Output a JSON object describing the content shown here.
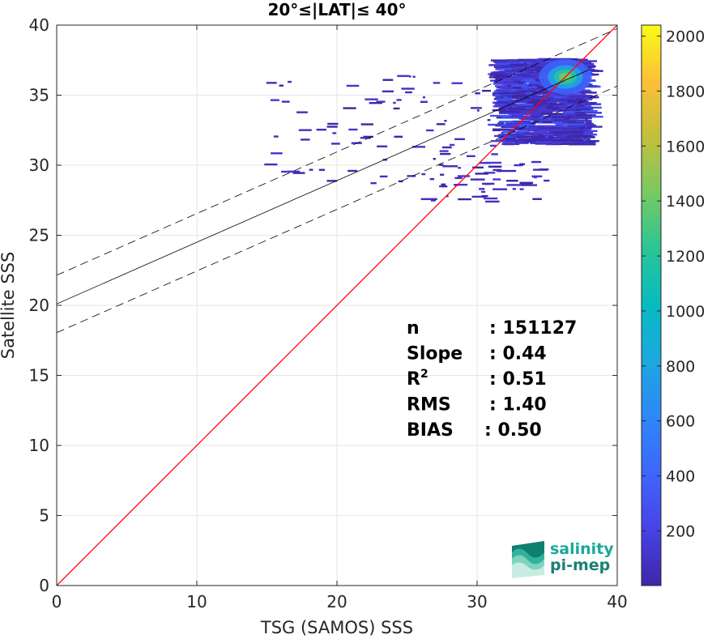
{
  "chart_data": {
    "type": "heatmap",
    "title": "20°≤|LAT|≤ 40°",
    "xlabel": "TSG (SAMOS) SSS",
    "ylabel": "Satellite SSS",
    "xlim": [
      0,
      40
    ],
    "ylim": [
      0,
      40
    ],
    "xticks": [
      "0",
      "10",
      "20",
      "30",
      "40"
    ],
    "yticks": [
      "0",
      "5",
      "10",
      "15",
      "20",
      "25",
      "30",
      "35",
      "40"
    ],
    "grid": true,
    "one_to_one_line": {
      "from": [
        0,
        0
      ],
      "to": [
        40,
        40
      ],
      "color": "#ff0000"
    },
    "regression": {
      "intercept": 20.1,
      "slope": 0.44,
      "band_offset": 2.05,
      "x_end": 38,
      "color": "#000000"
    },
    "density": {
      "xcenter": 36.3,
      "ycenter": 36.3,
      "xmin": 10,
      "xmax": 39,
      "ymin": 27,
      "ymax": 37.6
    },
    "colorbar": {
      "ticks": [
        "200",
        "400",
        "600",
        "800",
        "1000",
        "1200",
        "1400",
        "1600",
        "1800",
        "2000"
      ],
      "tick_values": [
        200,
        400,
        600,
        800,
        1000,
        1200,
        1400,
        1600,
        1800,
        2000
      ],
      "range": [
        1,
        2040
      ],
      "colormap": "parula"
    },
    "stats": [
      {
        "label": "n",
        "sup": "",
        "value": ": 151127"
      },
      {
        "label": "Slope",
        "sup": "",
        "value": ": 0.44"
      },
      {
        "label": "R",
        "sup": "2",
        "value": ": 0.51"
      },
      {
        "label": "RMS",
        "sup": "",
        "value": ": 1.40"
      },
      {
        "label": "BIAS",
        "sup": "",
        "value": ": 0.50"
      }
    ]
  },
  "logo": {
    "line1": "salinity",
    "line2": "pi-mep",
    "color": "#1aa89a"
  }
}
